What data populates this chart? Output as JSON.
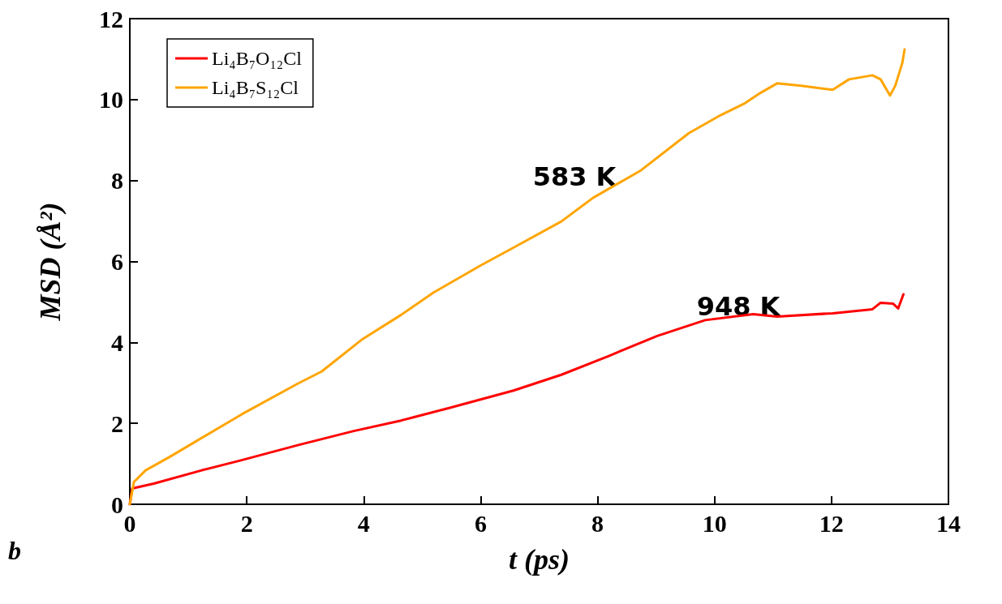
{
  "chart_data": {
    "type": "line",
    "xlabel": "t (ps)",
    "ylabel": "MSD (Å²)",
    "xlim": [
      0,
      14
    ],
    "xticks": [
      0,
      2,
      4,
      6,
      8,
      10,
      12,
      14
    ],
    "ylim": [
      0,
      12
    ],
    "yticks": [
      0,
      2,
      4,
      6,
      8,
      10,
      12
    ],
    "grid": false,
    "legend": "top left",
    "marker": "none",
    "line_style": "solid",
    "annotations": [
      "583 K",
      "948 K",
      "b"
    ],
    "series": [
      {
        "name": "Li₄B₇O₁₂Cl",
        "color": "#ff0000",
        "x": [
          0,
          0.04,
          0.41,
          1.23,
          1.91,
          2.87,
          3.83,
          4.64,
          5.46,
          6.56,
          7.38,
          8.2,
          9.02,
          9.84,
          10.66,
          11.07,
          12.02,
          12.7,
          12.84,
          13.05,
          13.14,
          13.23
        ],
        "values": [
          0,
          0.39,
          0.51,
          0.84,
          1.09,
          1.46,
          1.81,
          2.07,
          2.38,
          2.81,
          3.2,
          3.67,
          4.16,
          4.55,
          4.7,
          4.64,
          4.72,
          4.82,
          4.98,
          4.96,
          4.84,
          5.19
        ]
      },
      {
        "name": "Li₄B₇S₁₂Cl",
        "color": "#ffa500",
        "x": [
          0,
          0.07,
          0.27,
          0.68,
          1.09,
          1.91,
          2.87,
          3.28,
          3.96,
          4.64,
          5.19,
          6.01,
          6.56,
          7.38,
          7.92,
          8.74,
          9.56,
          10.11,
          10.52,
          10.79,
          11.07,
          11.48,
          12.02,
          12.3,
          12.7,
          12.84,
          13.0,
          13.09,
          13.21,
          13.25
        ],
        "values": [
          0,
          0.55,
          0.84,
          1.17,
          1.52,
          2.22,
          2.98,
          3.28,
          4.06,
          4.68,
          5.23,
          5.91,
          6.34,
          6.99,
          7.57,
          8.25,
          9.17,
          9.62,
          9.91,
          10.17,
          10.4,
          10.34,
          10.24,
          10.5,
          10.6,
          10.5,
          10.1,
          10.34,
          10.9,
          11.24
        ]
      }
    ]
  }
}
